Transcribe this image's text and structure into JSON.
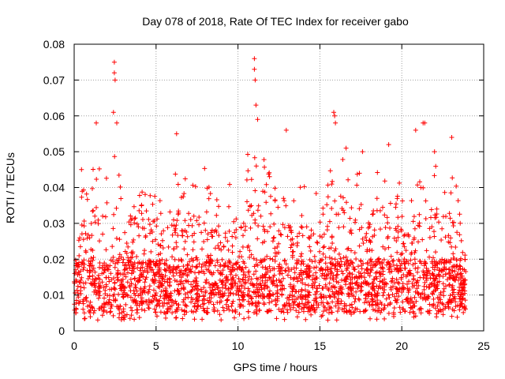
{
  "chart_data": {
    "type": "scatter",
    "title": "Day 078 of 2018, Rate Of TEC Index for receiver gabo",
    "xlabel": "GPS time / hours",
    "ylabel": "ROTI / TECUs",
    "xlim": [
      0,
      25
    ],
    "ylim": [
      0,
      0.08
    ],
    "x_ticks": [
      0,
      5,
      10,
      15,
      20,
      25
    ],
    "x_tick_labels": [
      "0",
      "5",
      "10",
      "15",
      "20",
      "25"
    ],
    "y_ticks": [
      0,
      0.01,
      0.02,
      0.03,
      0.04,
      0.05,
      0.06,
      0.07,
      0.08
    ],
    "y_tick_labels": [
      "0",
      "0.01",
      "0.02",
      "0.03",
      "0.04",
      "0.05",
      "0.06",
      "0.07",
      "0.08"
    ],
    "grid": true,
    "marker": "+",
    "marker_color": "#ff0000",
    "data_extent_hours": [
      0,
      23.9
    ],
    "dense_band": [
      0.005,
      0.02
    ],
    "peaks": [
      {
        "x": 2.45,
        "y": 0.075
      },
      {
        "x": 2.45,
        "y": 0.072
      },
      {
        "x": 2.5,
        "y": 0.07
      },
      {
        "x": 2.4,
        "y": 0.061
      },
      {
        "x": 2.6,
        "y": 0.058
      },
      {
        "x": 1.35,
        "y": 0.058
      },
      {
        "x": 11.0,
        "y": 0.076
      },
      {
        "x": 11.0,
        "y": 0.073
      },
      {
        "x": 11.05,
        "y": 0.07
      },
      {
        "x": 11.1,
        "y": 0.063
      },
      {
        "x": 11.2,
        "y": 0.059
      },
      {
        "x": 12.95,
        "y": 0.056
      },
      {
        "x": 15.85,
        "y": 0.061
      },
      {
        "x": 15.9,
        "y": 0.06
      },
      {
        "x": 15.95,
        "y": 0.058
      },
      {
        "x": 6.25,
        "y": 0.055
      },
      {
        "x": 21.3,
        "y": 0.058
      },
      {
        "x": 21.4,
        "y": 0.058
      },
      {
        "x": 20.85,
        "y": 0.056
      },
      {
        "x": 23.05,
        "y": 0.054
      },
      {
        "x": 22.0,
        "y": 0.05
      },
      {
        "x": 19.2,
        "y": 0.052
      },
      {
        "x": 16.6,
        "y": 0.051
      },
      {
        "x": 17.6,
        "y": 0.05
      },
      {
        "x": 0.45,
        "y": 0.045
      }
    ],
    "envelope": [
      {
        "x": 0.0,
        "y": 0.017
      },
      {
        "x": 0.5,
        "y": 0.04
      },
      {
        "x": 1.0,
        "y": 0.044
      },
      {
        "x": 1.5,
        "y": 0.048
      },
      {
        "x": 2.0,
        "y": 0.044
      },
      {
        "x": 2.5,
        "y": 0.05
      },
      {
        "x": 3.0,
        "y": 0.04
      },
      {
        "x": 3.5,
        "y": 0.035
      },
      {
        "x": 4.0,
        "y": 0.038
      },
      {
        "x": 4.5,
        "y": 0.045
      },
      {
        "x": 5.0,
        "y": 0.037
      },
      {
        "x": 5.5,
        "y": 0.04
      },
      {
        "x": 6.0,
        "y": 0.05
      },
      {
        "x": 6.5,
        "y": 0.045
      },
      {
        "x": 7.0,
        "y": 0.042
      },
      {
        "x": 7.5,
        "y": 0.05
      },
      {
        "x": 8.0,
        "y": 0.046
      },
      {
        "x": 8.5,
        "y": 0.04
      },
      {
        "x": 9.0,
        "y": 0.043
      },
      {
        "x": 9.5,
        "y": 0.045
      },
      {
        "x": 10.0,
        "y": 0.04
      },
      {
        "x": 10.5,
        "y": 0.048
      },
      {
        "x": 11.0,
        "y": 0.055
      },
      {
        "x": 11.5,
        "y": 0.05
      },
      {
        "x": 12.0,
        "y": 0.048
      },
      {
        "x": 12.5,
        "y": 0.046
      },
      {
        "x": 13.0,
        "y": 0.045
      },
      {
        "x": 13.5,
        "y": 0.038
      },
      {
        "x": 14.0,
        "y": 0.047
      },
      {
        "x": 14.5,
        "y": 0.04
      },
      {
        "x": 15.0,
        "y": 0.038
      },
      {
        "x": 15.5,
        "y": 0.045
      },
      {
        "x": 16.0,
        "y": 0.047
      },
      {
        "x": 16.5,
        "y": 0.049
      },
      {
        "x": 17.0,
        "y": 0.042
      },
      {
        "x": 17.5,
        "y": 0.046
      },
      {
        "x": 18.0,
        "y": 0.042
      },
      {
        "x": 18.5,
        "y": 0.046
      },
      {
        "x": 19.0,
        "y": 0.05
      },
      {
        "x": 19.5,
        "y": 0.045
      },
      {
        "x": 20.0,
        "y": 0.04
      },
      {
        "x": 20.5,
        "y": 0.035
      },
      {
        "x": 21.0,
        "y": 0.045
      },
      {
        "x": 21.5,
        "y": 0.042
      },
      {
        "x": 22.0,
        "y": 0.048
      },
      {
        "x": 22.5,
        "y": 0.04
      },
      {
        "x": 23.0,
        "y": 0.045
      },
      {
        "x": 23.5,
        "y": 0.038
      },
      {
        "x": 23.9,
        "y": 0.02
      }
    ]
  }
}
